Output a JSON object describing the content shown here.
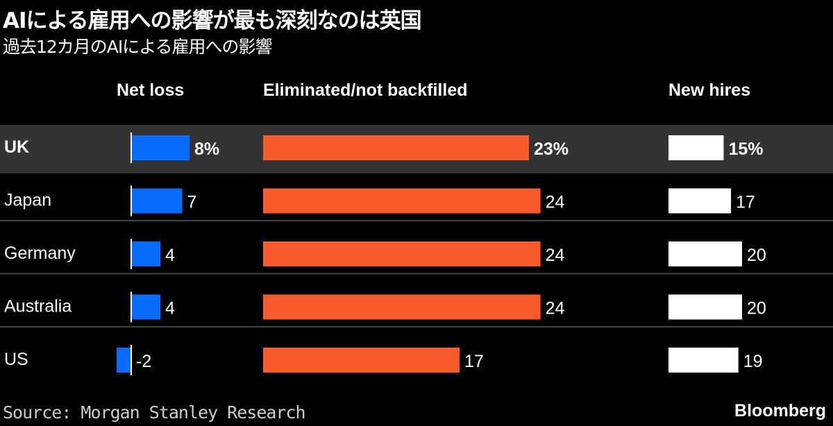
{
  "title": "AIによる雇用への影響が最も深刻なのは英国",
  "subtitle": "過去12カ月のAIによる雇用への影響",
  "source": "Source: Morgan Stanley Research",
  "logo": "Bloomberg",
  "colors": {
    "net_loss": "#0a6cff",
    "eliminated": "#f85b2b",
    "new_hires": "#ffffff",
    "highlight": "#333333",
    "background": "#000000"
  },
  "chart_data": {
    "type": "bar",
    "categories": [
      "UK",
      "Japan",
      "Germany",
      "Australia",
      "US"
    ],
    "highlight": "UK",
    "unit": "%",
    "series": [
      {
        "name": "Net loss",
        "values": [
          8,
          7,
          4,
          4,
          -2
        ]
      },
      {
        "name": "Eliminated/not backfilled",
        "values": [
          23,
          24,
          24,
          24,
          17
        ]
      },
      {
        "name": "New hires",
        "values": [
          15,
          17,
          20,
          20,
          19
        ]
      }
    ]
  }
}
